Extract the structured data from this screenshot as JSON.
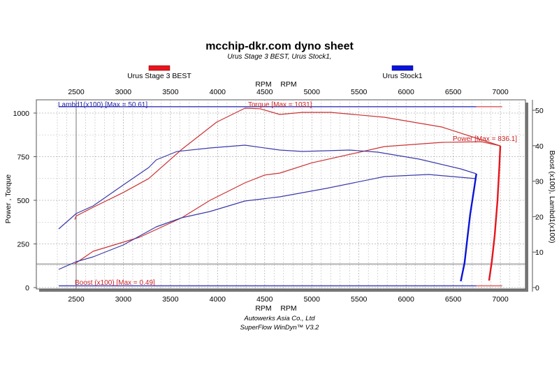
{
  "chart_data": {
    "type": "line",
    "title": "mcchip-dkr.com dyno sheet",
    "subtitle": "Urus Stage 3 BEST, Urus Stock1,",
    "xlabel_top": [
      "RPM",
      "RPM"
    ],
    "xlabel_bottom": [
      "RPM",
      "RPM"
    ],
    "ylabel_left": "Power , Torque",
    "ylabel_right": "Boost (x100), Lambd1(x100)",
    "xlim": [
      2230,
      7250
    ],
    "ylim_left": [
      -5,
      1075
    ],
    "ylim_right": [
      -1,
      53
    ],
    "x_ticks": [
      2500,
      3000,
      3500,
      4000,
      4500,
      5000,
      5500,
      6000,
      6500,
      7000
    ],
    "y_left_ticks": [
      0,
      250,
      500,
      750,
      1000
    ],
    "y_right_ticks": [
      0,
      10,
      20,
      30,
      40,
      50
    ],
    "grid": true,
    "legend": [
      {
        "name": "Urus Stage 3 BEST",
        "color": "#e8141c"
      },
      {
        "name": "Urus Stock1",
        "color": "#0a14d8"
      }
    ],
    "annotations": {
      "lambda": "Lambd1(x100) [Max = 50.61]",
      "torque": "Torque [Max = 1031]",
      "power": "Power  [Max = 836.1]",
      "boost": "Boost (x100) [Max = 0.49]"
    },
    "series": [
      {
        "run": "Urus Stage 3 BEST",
        "quantity": "Torque",
        "color": "#cc3333",
        "x": [
          2485,
          2500,
          2680,
          3000,
          3270,
          3620,
          3990,
          4290,
          4450,
          4660,
          4900,
          5200,
          5770,
          6380,
          7000
        ],
        "y": [
          390,
          410,
          460,
          545,
          625,
          792,
          948,
          1028,
          1025,
          992,
          1004,
          1004,
          976,
          920,
          812
        ]
      },
      {
        "run": "Urus Stage 3 BEST",
        "quantity": "Power",
        "color": "#cc3333",
        "x": [
          2485,
          2680,
          3170,
          3620,
          3920,
          4290,
          4500,
          4660,
          5000,
          5770,
          6380,
          6800,
          7000
        ],
        "y": [
          136,
          208,
          288,
          400,
          500,
          600,
          645,
          656,
          715,
          808,
          832,
          836,
          812
        ]
      },
      {
        "run": "Urus Stage 3 BEST",
        "quantity": "Rundown",
        "color": "#e8141c",
        "x": [
          7000,
          6990,
          6970,
          6940,
          6910,
          6880
        ],
        "y": [
          812,
          700,
          500,
          300,
          150,
          40
        ]
      },
      {
        "run": "Urus Stock1",
        "quantity": "Torque",
        "color": "#3a3aaa",
        "x": [
          2315,
          2450,
          2500,
          2680,
          3000,
          3270,
          3350,
          3570,
          3920,
          4290,
          4660,
          4900,
          5400,
          5700,
          6140,
          6580,
          6745
        ],
        "y": [
          336,
          400,
          424,
          468,
          588,
          688,
          732,
          780,
          800,
          816,
          788,
          780,
          788,
          776,
          736,
          680,
          652
        ]
      },
      {
        "run": "Urus Stock1",
        "quantity": "Power",
        "color": "#3a3aaa",
        "x": [
          2315,
          2500,
          2680,
          3000,
          3350,
          3620,
          3920,
          4290,
          4660,
          5150,
          5770,
          6240,
          6745
        ],
        "y": [
          104,
          148,
          176,
          244,
          348,
          400,
          436,
          496,
          520,
          568,
          636,
          648,
          624
        ]
      },
      {
        "run": "Urus Stock1",
        "quantity": "Rundown",
        "color": "#0a14d8",
        "x": [
          6745,
          6720,
          6680,
          6650,
          6620,
          6580
        ],
        "y": [
          652,
          560,
          420,
          280,
          140,
          36
        ]
      }
    ],
    "right_axis_series": [
      {
        "run": "Urus Stock1",
        "quantity": "Lambd1(x100)",
        "color": "#4444bb",
        "x": [
          2315,
          6745
        ],
        "y": [
          51,
          51
        ]
      },
      {
        "run": "Urus Stage 3 BEST",
        "quantity": "Lambd1(x100)",
        "color": "#e06060",
        "x": [
          6745,
          7020
        ],
        "y": [
          51,
          51
        ]
      },
      {
        "run": "Urus Stock1",
        "quantity": "Boost (x100)",
        "color": "#4444bb",
        "x": [
          2315,
          6745
        ],
        "y": [
          0.49,
          0.49
        ]
      },
      {
        "run": "Urus Stage 3 BEST",
        "quantity": "Boost (x100)",
        "color": "#e06060",
        "x": [
          6745,
          7020
        ],
        "y": [
          0.49,
          0.49
        ]
      }
    ],
    "reference_lines": {
      "x": 2500,
      "y_left": 135
    }
  },
  "footer": {
    "line1": "Autowerks Asia Co., Ltd",
    "line2": "SuperFlow WinDyn™ V3.2"
  }
}
